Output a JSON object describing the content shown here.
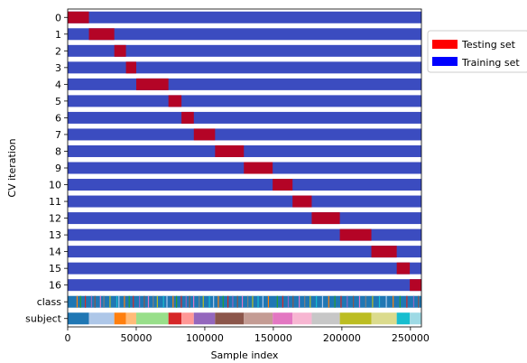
{
  "chart_data": {
    "type": "bar",
    "xlabel": "Sample index",
    "ylabel": "CV iteration",
    "xlim": [
      0,
      258000
    ],
    "x_ticks": [
      0,
      50000,
      100000,
      150000,
      200000,
      250000
    ],
    "x_tick_labels": [
      "0",
      "50000",
      "100000",
      "150000",
      "200000",
      "250000"
    ],
    "row_labels": [
      "0",
      "1",
      "2",
      "3",
      "4",
      "5",
      "6",
      "7",
      "8",
      "9",
      "10",
      "11",
      "12",
      "13",
      "14",
      "15",
      "16",
      "class",
      "subject"
    ],
    "legend": {
      "placement": "outside-right",
      "entries": [
        {
          "label": "Testing set",
          "color": "#ff0000"
        },
        {
          "label": "Training set",
          "color": "#0000ff"
        }
      ]
    },
    "colors": {
      "training": "#3b4cc0",
      "testing": "#b40426"
    },
    "cv_iterations": [
      {
        "iteration": 0,
        "test_start": 0,
        "test_end": 15500
      },
      {
        "iteration": 1,
        "test_start": 15500,
        "test_end": 34000
      },
      {
        "iteration": 2,
        "test_start": 34000,
        "test_end": 42500
      },
      {
        "iteration": 3,
        "test_start": 42500,
        "test_end": 50000
      },
      {
        "iteration": 4,
        "test_start": 50000,
        "test_end": 73500
      },
      {
        "iteration": 5,
        "test_start": 73500,
        "test_end": 83000
      },
      {
        "iteration": 6,
        "test_start": 83000,
        "test_end": 92000
      },
      {
        "iteration": 7,
        "test_start": 92000,
        "test_end": 107500
      },
      {
        "iteration": 8,
        "test_start": 107500,
        "test_end": 128500
      },
      {
        "iteration": 9,
        "test_start": 128500,
        "test_end": 149500
      },
      {
        "iteration": 10,
        "test_start": 149500,
        "test_end": 164000
      },
      {
        "iteration": 11,
        "test_start": 164000,
        "test_end": 178000
      },
      {
        "iteration": 12,
        "test_start": 178000,
        "test_end": 198500
      },
      {
        "iteration": 13,
        "test_start": 198500,
        "test_end": 221500
      },
      {
        "iteration": 14,
        "test_start": 221500,
        "test_end": 240000
      },
      {
        "iteration": 15,
        "test_start": 240000,
        "test_end": 249500
      },
      {
        "iteration": 16,
        "test_start": 249500,
        "test_end": 258000
      }
    ],
    "class_row": {
      "base_color": "#1f77b4",
      "accent_colors": [
        "#ff7f0e",
        "#2ca02c",
        "#d62728",
        "#9467bd",
        "#8c564b",
        "#e377c2",
        "#7f7f7f",
        "#bcbd22",
        "#17becf",
        "#aec7e8"
      ],
      "accent_positions": [
        6500,
        9000,
        12500,
        17000,
        19500,
        23500,
        26000,
        30500,
        35500,
        37000,
        41000,
        44500,
        47500,
        52000,
        55500,
        58500,
        62000,
        65000,
        69500,
        72000,
        76500,
        79000,
        82500,
        86000,
        88500,
        91500,
        95500,
        98500,
        103000,
        106000,
        109500,
        113000,
        116500,
        120000,
        123500,
        127000,
        131000,
        134500,
        138500,
        142000,
        146000,
        152500,
        156500,
        160500,
        164000,
        168500,
        172500,
        176500,
        181000,
        185500,
        190000,
        194500,
        199000,
        203500,
        208000,
        212500,
        217000,
        222000,
        227000,
        232000,
        237000,
        242000,
        247000,
        252000,
        255500
      ]
    },
    "subject_row": {
      "segments": [
        {
          "start": 0,
          "end": 15500,
          "color": "#1f77b4"
        },
        {
          "start": 15500,
          "end": 34000,
          "color": "#aec7e8"
        },
        {
          "start": 34000,
          "end": 42500,
          "color": "#ff7f0e"
        },
        {
          "start": 42500,
          "end": 50000,
          "color": "#ffbb78"
        },
        {
          "start": 50000,
          "end": 73500,
          "color": "#98df8a"
        },
        {
          "start": 73500,
          "end": 83000,
          "color": "#d62728"
        },
        {
          "start": 83000,
          "end": 92000,
          "color": "#ff9896"
        },
        {
          "start": 92000,
          "end": 107500,
          "color": "#9467bd"
        },
        {
          "start": 107500,
          "end": 128500,
          "color": "#8c564b"
        },
        {
          "start": 128500,
          "end": 149500,
          "color": "#c49c94"
        },
        {
          "start": 149500,
          "end": 164000,
          "color": "#e377c2"
        },
        {
          "start": 164000,
          "end": 178000,
          "color": "#f7b6d2"
        },
        {
          "start": 178000,
          "end": 198500,
          "color": "#c7c7c7"
        },
        {
          "start": 198500,
          "end": 221500,
          "color": "#bcbd22"
        },
        {
          "start": 221500,
          "end": 240000,
          "color": "#dbdb8d"
        },
        {
          "start": 240000,
          "end": 249500,
          "color": "#17becf"
        },
        {
          "start": 249500,
          "end": 258000,
          "color": "#9edae5"
        }
      ]
    }
  }
}
